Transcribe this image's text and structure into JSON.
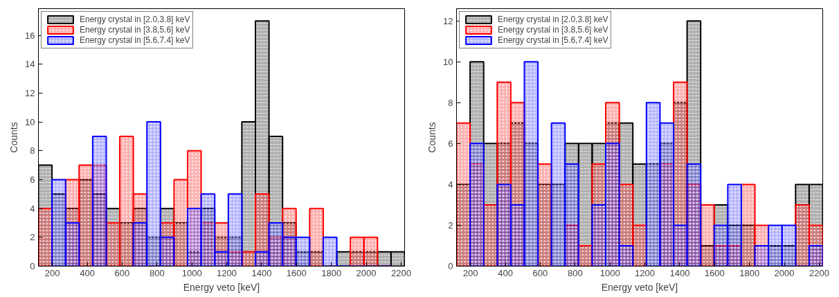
{
  "chart_data": [
    {
      "type": "histogram",
      "xlabel": "Energy veto [keV]",
      "ylabel": "Counts",
      "bins": [
        120,
        197.8,
        275.6,
        353.3,
        431.1,
        508.9,
        586.7,
        664.4,
        742.2,
        820,
        897.8,
        975.6,
        1053.3,
        1131.1,
        1208.9,
        1286.7,
        1364.4,
        1442.2,
        1520,
        1597.8,
        1675.6,
        1753.3,
        1831.1,
        1908.9,
        1986.7,
        2064.4,
        2142.2,
        2220
      ],
      "series": [
        {
          "name": "Energy crystal in [2.0,3.8] keV",
          "color": "#000000",
          "values": [
            7,
            5,
            4,
            6,
            5,
            4,
            3,
            4,
            2,
            4,
            3,
            1,
            4,
            2,
            2,
            10,
            17,
            9,
            3,
            1,
            1,
            0,
            1,
            1,
            1,
            1,
            1
          ]
        },
        {
          "name": "Energy crystal in [3.8,5.6] keV",
          "color": "#ff0000",
          "values": [
            4,
            null,
            6,
            7,
            7,
            3,
            9,
            5,
            0,
            3,
            6,
            8,
            3,
            3,
            1,
            1,
            5,
            2,
            4,
            null,
            4,
            0,
            null,
            2,
            2,
            0,
            null
          ]
        },
        {
          "name": "Energy crystal in [5.6,7.4] keV",
          "color": "#0000ff",
          "values": [
            null,
            6,
            3,
            null,
            9,
            null,
            null,
            3,
            10,
            2,
            null,
            4,
            5,
            1,
            5,
            null,
            1,
            3,
            2,
            2,
            null,
            2,
            0,
            0,
            0,
            0,
            null
          ]
        }
      ],
      "xlim": [
        120,
        2220
      ],
      "xticks": [
        200,
        400,
        600,
        800,
        1000,
        1200,
        1400,
        1600,
        1800,
        2000,
        2200
      ],
      "ylim": [
        0,
        17.85
      ],
      "yticks": [
        0,
        2,
        4,
        6,
        8,
        10,
        12,
        14,
        16
      ],
      "grid": false,
      "legend": "top left"
    },
    {
      "type": "histogram",
      "xlabel": "Energy veto [keV]",
      "ylabel": "Counts",
      "bins": [
        120,
        197.8,
        275.6,
        353.3,
        431.1,
        508.9,
        586.7,
        664.4,
        742.2,
        820,
        897.8,
        975.6,
        1053.3,
        1131.1,
        1208.9,
        1286.7,
        1364.4,
        1442.2,
        1520,
        1597.8,
        1675.6,
        1753.3,
        1831.1,
        1908.9,
        1986.7,
        2064.4,
        2142.2,
        2220
      ],
      "series": [
        {
          "name": "Energy crystal in [2.0,3.8] keV",
          "color": "#000000",
          "values": [
            4,
            10,
            6,
            6,
            7,
            6,
            4,
            4,
            6,
            6,
            6,
            7,
            7,
            5,
            5,
            6,
            8,
            12,
            1,
            3,
            2,
            2,
            0,
            1,
            1,
            4,
            4
          ]
        },
        {
          "name": "Energy crystal in [3.8,5.6] keV",
          "color": "#ff0000",
          "values": [
            7,
            5,
            3,
            9,
            8,
            null,
            5,
            null,
            2,
            1,
            5,
            8,
            4,
            2,
            null,
            5,
            9,
            4,
            3,
            1,
            1,
            4,
            2,
            null,
            null,
            3,
            2
          ]
        },
        {
          "name": "Energy crystal in [5.6,7.4] keV",
          "color": "#0000ff",
          "values": [
            null,
            6,
            null,
            4,
            3,
            10,
            null,
            7,
            5,
            null,
            3,
            6,
            1,
            null,
            8,
            7,
            2,
            5,
            null,
            2,
            4,
            null,
            1,
            2,
            2,
            0,
            1
          ]
        }
      ],
      "xlim": [
        120,
        2220
      ],
      "xticks": [
        200,
        400,
        600,
        800,
        1000,
        1200,
        1400,
        1600,
        1800,
        2000,
        2200
      ],
      "ylim": [
        0,
        12.6
      ],
      "yticks": [
        0,
        2,
        4,
        6,
        8,
        10,
        12
      ],
      "grid": false,
      "legend": "top left"
    }
  ]
}
